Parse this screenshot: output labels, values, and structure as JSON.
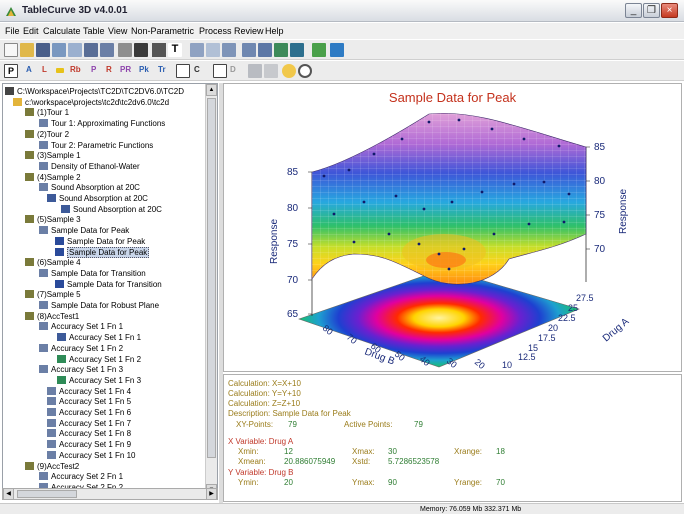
{
  "window": {
    "title": "TableCurve 3D v4.0.01",
    "controls": {
      "minimize": "_",
      "restore": "❐",
      "close": "×"
    }
  },
  "menu": [
    "File",
    "Edit",
    "Calculate",
    "Table",
    "View",
    "Non-Parametric",
    "Process",
    "Review",
    "Help"
  ],
  "toolbar2_letters": [
    "A",
    "L",
    "Rb",
    "P",
    "R",
    "PR",
    "Pk",
    "Tr",
    "C",
    "D"
  ],
  "tree": [
    "C:\\Workspace\\Projects\\TC2D\\TC2DV6.0\\TC2D",
    "c:\\workspace\\projects\\tc2d\\tc2dv6.0\\tc2d",
    "(1)Tour 1",
    "Tour 1: Approximating Functions",
    "(2)Tour 2",
    "Tour 2: Parametric Functions",
    "(3)Sample 1",
    "Density of Ethanol-Water",
    "(4)Sample 2",
    "Sound Absorption at 20C",
    "Sound Absorption at 20C",
    "Sound Absorption at 20C",
    "(5)Sample 3",
    "Sample Data for Peak",
    "Sample Data for Peak",
    "Sample Data for Peak",
    "(6)Sample 4",
    "Sample Data for Transition",
    "Sample Data for Transition",
    "(7)Sample 5",
    "Sample Data for Robust Plane",
    "(8)AccTest1",
    "Accuracy Set 1 Fn 1",
    "Accuracy Set 1 Fn 1",
    "Accuracy Set 1 Fn 2",
    "Accuracy Set 1 Fn 2",
    "Accuracy Set 1 Fn 3",
    "Accuracy Set 1 Fn 3",
    "Accuracy Set 1 Fn 4",
    "Accuracy Set 1 Fn 5",
    "Accuracy Set 1 Fn 6",
    "Accuracy Set 1 Fn 7",
    "Accuracy Set 1 Fn 8",
    "Accuracy Set 1 Fn 9",
    "Accuracy Set 1 Fn 10",
    "(9)AccTest2",
    "Accuracy Set 2 Fn 1",
    "Accuracy Set 2 Fn 2"
  ],
  "graph": {
    "title": "Sample Data for Peak",
    "z_axis_label_left": "Response",
    "z_axis_label_right": "Response",
    "z_ticks": [
      "85",
      "80",
      "75",
      "70",
      "65"
    ],
    "x_axis_label": "Drug B",
    "x_ticks": [
      "80",
      "70",
      "60",
      "50",
      "40",
      "30",
      "20"
    ],
    "y_axis_label": "Drug A",
    "y_ticks": [
      "27.5",
      "25",
      "22.5",
      "20",
      "17.5",
      "15",
      "12.5",
      "10"
    ]
  },
  "info": {
    "calc1": "Calculation: X=X+10",
    "calc2": "Calculation: Y=Y+10",
    "calc3": "Calculation: Z=Z+10",
    "description": "Description: Sample Data for Peak",
    "xy_points_label": "XY-Points:",
    "xy_points": "79",
    "active_points_label": "Active Points:",
    "active_points": "79",
    "x_variable": "X Variable: Drug A",
    "xmin_label": "Xmin:",
    "xmin": "12",
    "xmax_label": "Xmax:",
    "xmax": "30",
    "xrange_label": "Xrange:",
    "xrange": "18",
    "xmean_label": "Xmean:",
    "xmean": "20.886075949",
    "xstd_label": "Xstd:",
    "xstd": "5.7286523578",
    "y_variable": "Y Variable: Drug B",
    "ymin_label": "Ymin:",
    "ymin": "20",
    "ymax_label": "Ymax:",
    "ymax": "90",
    "yrange_label": "Yrange:",
    "yrange": "70"
  },
  "status": {
    "memory": "Memory: 76.059 Mb  332.371 Mb"
  },
  "colors": {
    "title_red": "#c4311c",
    "label_olive": "#9a7c1a",
    "value_green": "#2e7d32"
  }
}
